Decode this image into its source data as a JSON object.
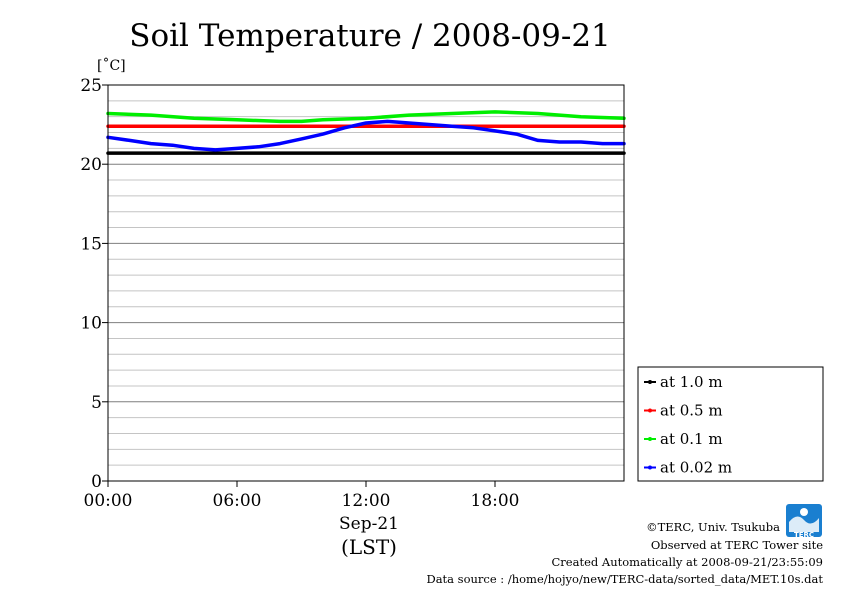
{
  "chart_data": {
    "type": "line",
    "title": "Soil Temperature / 2008-09-21",
    "ylabel": "[˚C]",
    "xlabel": "(LST)",
    "x_date_label": "Sep-21",
    "ylim": [
      0,
      25
    ],
    "xlim": [
      0,
      24
    ],
    "y_ticks": [
      0,
      5,
      10,
      15,
      20,
      25
    ],
    "y_tick_labels": [
      "0",
      "5",
      "10",
      "15",
      "20",
      "25"
    ],
    "y_minor_step": 1,
    "x_ticks": [
      0,
      6,
      12,
      18
    ],
    "x_tick_labels": [
      "00:00",
      "06:00",
      "12:00",
      "18:00"
    ],
    "grid": true,
    "legend_position": "bottom-right outside",
    "series": [
      {
        "name": "at 1.0 m",
        "color": "#000000",
        "x": [
          0,
          4,
          8,
          12,
          16,
          20,
          24
        ],
        "y": [
          20.7,
          20.7,
          20.7,
          20.7,
          20.7,
          20.7,
          20.7
        ]
      },
      {
        "name": "at 0.5 m",
        "color": "#ff0000",
        "x": [
          0,
          4,
          8,
          12,
          16,
          20,
          24
        ],
        "y": [
          22.4,
          22.4,
          22.4,
          22.4,
          22.4,
          22.4,
          22.4
        ]
      },
      {
        "name": "at 0.1 m",
        "color": "#00ee00",
        "x": [
          0,
          2,
          4,
          6,
          8,
          9,
          10,
          12,
          14,
          16,
          18,
          20,
          22,
          24
        ],
        "y": [
          23.2,
          23.1,
          22.9,
          22.8,
          22.7,
          22.7,
          22.8,
          22.9,
          23.1,
          23.2,
          23.3,
          23.2,
          23.0,
          22.9
        ]
      },
      {
        "name": "at 0.02 m",
        "color": "#0000ff",
        "x": [
          0,
          1,
          2,
          3,
          4,
          5,
          6,
          7,
          8,
          9,
          10,
          11,
          12,
          13,
          14,
          15,
          16,
          17,
          18,
          19,
          20,
          21,
          22,
          23,
          24
        ],
        "y": [
          21.7,
          21.5,
          21.3,
          21.2,
          21.0,
          20.9,
          21.0,
          21.1,
          21.3,
          21.6,
          21.9,
          22.3,
          22.6,
          22.7,
          22.6,
          22.5,
          22.4,
          22.3,
          22.1,
          21.9,
          21.5,
          21.4,
          21.4,
          21.3,
          21.3
        ]
      }
    ]
  },
  "footer": {
    "copyright": "©TERC, Univ. Tsukuba",
    "observed": "Observed at TERC Tower site",
    "created": "Created Automatically at 2008-09-21/23:55:09",
    "source": "Data source : /home/hojyo/new/TERC-data/sorted_data/MET.10s.dat"
  },
  "logo": {
    "text": "TERC"
  }
}
